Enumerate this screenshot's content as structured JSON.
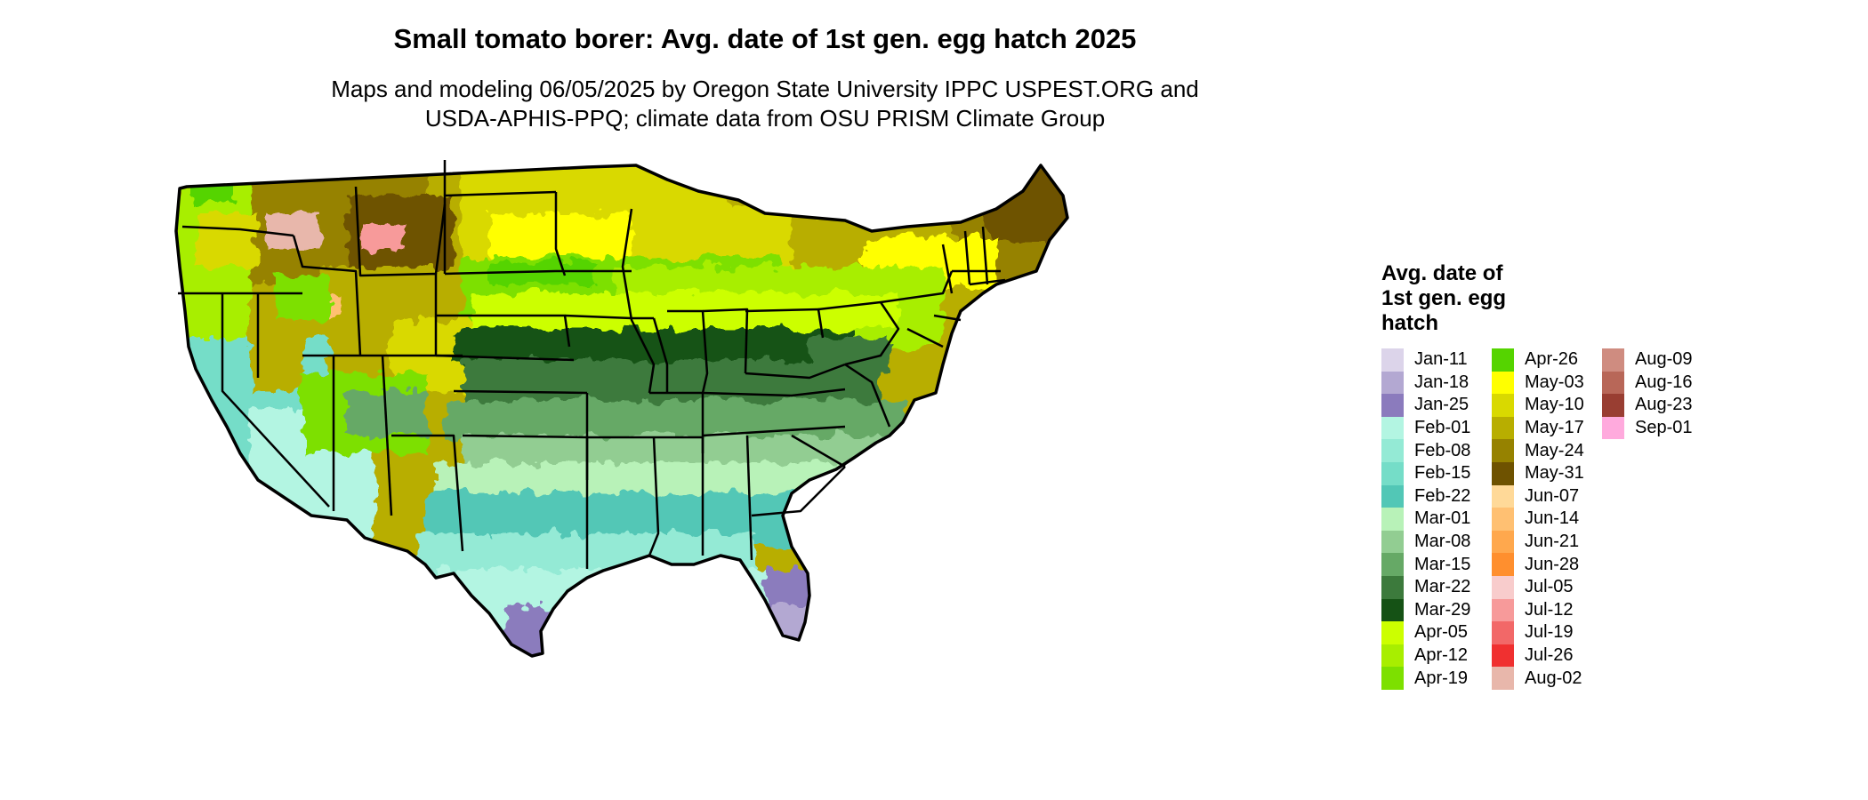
{
  "title": "Small tomato borer: Avg. date of 1st gen. egg hatch 2025",
  "subtitle_line1": "Maps and modeling 06/05/2025 by Oregon State University IPPC USPEST.ORG and",
  "subtitle_line2": "USDA-APHIS-PPQ; climate data from OSU PRISM Climate Group",
  "legend": {
    "title_line1": "Avg. date of",
    "title_line2": "1st gen. egg",
    "title_line3": "hatch",
    "columns": [
      [
        {
          "label": "Jan-11",
          "color": "#dcd4ea"
        },
        {
          "label": "Jan-18",
          "color": "#b3a8d2"
        },
        {
          "label": "Jan-25",
          "color": "#8b7bbd"
        },
        {
          "label": "Feb-01",
          "color": "#b3f5e2"
        },
        {
          "label": "Feb-08",
          "color": "#94ead5"
        },
        {
          "label": "Feb-15",
          "color": "#75ddc8"
        },
        {
          "label": "Feb-22",
          "color": "#52c7b6"
        },
        {
          "label": "Mar-01",
          "color": "#b8f2b8"
        },
        {
          "label": "Mar-08",
          "color": "#92cd92"
        },
        {
          "label": "Mar-15",
          "color": "#66a966"
        },
        {
          "label": "Mar-22",
          "color": "#3c7a3c"
        },
        {
          "label": "Mar-29",
          "color": "#155215"
        },
        {
          "label": "Apr-05",
          "color": "#ccff00"
        },
        {
          "label": "Apr-12",
          "color": "#a8ee00"
        },
        {
          "label": "Apr-19",
          "color": "#7de000"
        }
      ],
      [
        {
          "label": "Apr-26",
          "color": "#55d400"
        },
        {
          "label": "May-03",
          "color": "#ffff00"
        },
        {
          "label": "May-10",
          "color": "#d9d900"
        },
        {
          "label": "May-17",
          "color": "#b8ae00"
        },
        {
          "label": "May-24",
          "color": "#968200"
        },
        {
          "label": "May-31",
          "color": "#6e5200"
        },
        {
          "label": "Jun-07",
          "color": "#ffd998"
        },
        {
          "label": "Jun-14",
          "color": "#ffc072"
        },
        {
          "label": "Jun-21",
          "color": "#ffa84d"
        },
        {
          "label": "Jun-28",
          "color": "#ff8f2e"
        },
        {
          "label": "Jul-05",
          "color": "#f8cccc"
        },
        {
          "label": "Jul-12",
          "color": "#f79a9a"
        },
        {
          "label": "Jul-19",
          "color": "#f26868"
        },
        {
          "label": "Jul-26",
          "color": "#f03030"
        },
        {
          "label": "Aug-02",
          "color": "#e8b7ab"
        }
      ],
      [
        {
          "label": "Aug-09",
          "color": "#cf8c80"
        },
        {
          "label": "Aug-16",
          "color": "#b86758"
        },
        {
          "label": "Aug-23",
          "color": "#993e32"
        },
        {
          "label": "Sep-01",
          "color": "#ffaadd"
        }
      ]
    ]
  }
}
